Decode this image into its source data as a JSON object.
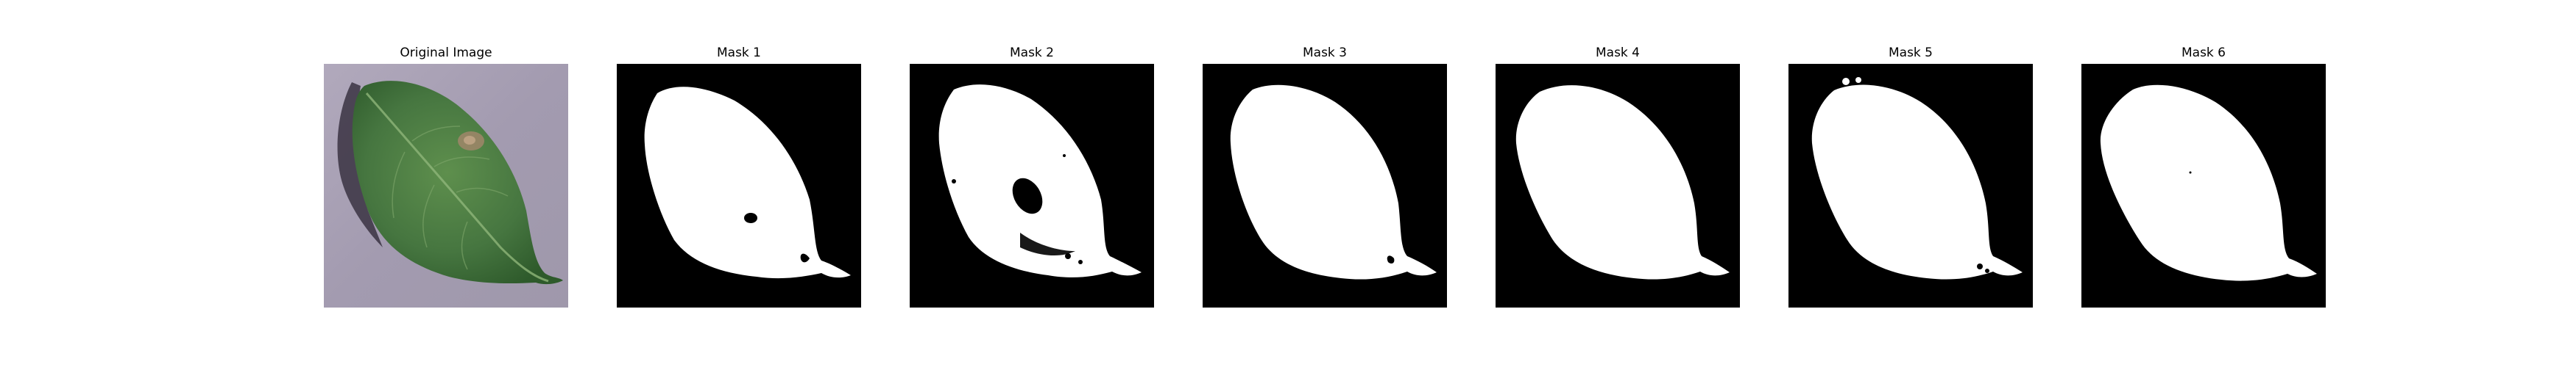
{
  "panels": [
    {
      "title": "Original Image",
      "kind": "photo",
      "content": "green leaf on purple-gray background"
    },
    {
      "title": "Mask 1",
      "kind": "mask"
    },
    {
      "title": "Mask 2",
      "kind": "mask"
    },
    {
      "title": "Mask 3",
      "kind": "mask"
    },
    {
      "title": "Mask 4",
      "kind": "mask"
    },
    {
      "title": "Mask 5",
      "kind": "mask"
    },
    {
      "title": "Mask 6",
      "kind": "mask"
    }
  ],
  "colors": {
    "background": "#ffffff",
    "mask_background": "#000000",
    "mask_foreground": "#ffffff",
    "photo_background": "#a79fb2",
    "leaf_dark": "#2f5a2a",
    "leaf_light": "#5c8e4c",
    "leaf_spot": "#a0866a"
  }
}
